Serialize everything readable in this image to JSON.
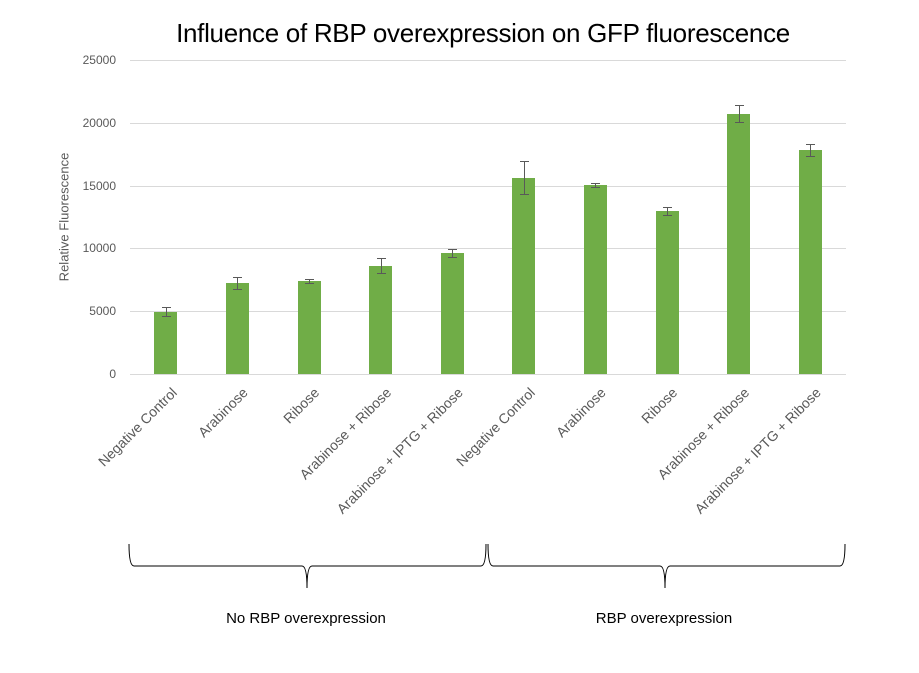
{
  "chart_data": {
    "type": "bar",
    "title": "Influence of RBP overexpression on GFP fluorescence",
    "xlabel": "",
    "ylabel": "Relative Fluorescence",
    "ylim": [
      0,
      25000
    ],
    "yticks": [
      0,
      5000,
      10000,
      15000,
      20000,
      25000
    ],
    "grid": true,
    "legend": null,
    "bar_color": "#70ad47",
    "errorbar_color": "#595959",
    "categories": [
      "Negative Control",
      "Arabinose",
      "Ribose",
      "Arabinose + Ribose",
      "Arabinose + IPTG + Ribose",
      "Negative Control",
      "Arabinose",
      "Ribose",
      "Arabinose + Ribose",
      "Arabinose + IPTG + Ribose"
    ],
    "values": [
      4960,
      7250,
      7420,
      8630,
      9650,
      15620,
      15050,
      12980,
      20720,
      17850
    ],
    "errors": [
      350,
      450,
      180,
      600,
      300,
      1300,
      150,
      300,
      680,
      480
    ],
    "groups": [
      {
        "label": "No RBP overexpression",
        "start_index": 0,
        "end_index": 4
      },
      {
        "label": "RBP overexpression",
        "start_index": 5,
        "end_index": 9
      }
    ]
  }
}
